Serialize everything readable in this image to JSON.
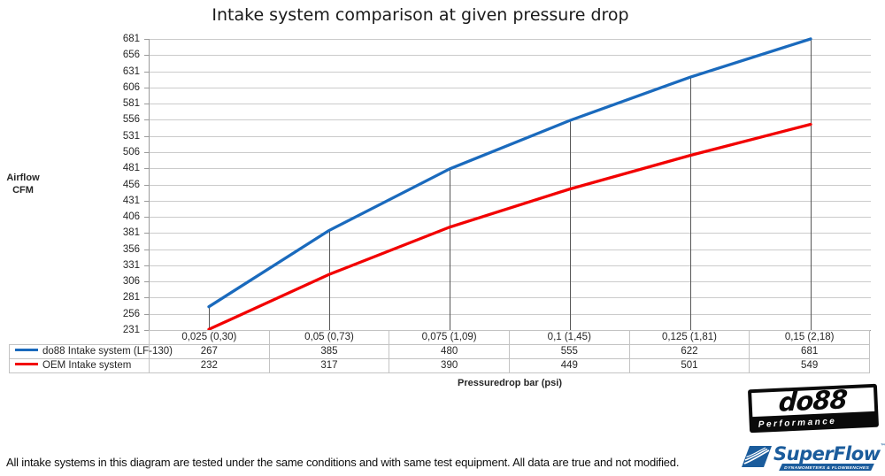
{
  "title": "Intake system comparison at given pressure drop",
  "y_axis": {
    "title_line1": "Airflow",
    "title_line2": "CFM"
  },
  "x_axis": {
    "title": "Pressuredrop bar (psi)"
  },
  "chart_data": {
    "type": "line",
    "title": "Intake system comparison at given pressure drop",
    "xlabel": "Pressuredrop bar (psi)",
    "ylabel": "Airflow CFM",
    "categories": [
      "0,025 (0,30)",
      "0,05 (0,73)",
      "0,075 (1,09)",
      "0,1 (1,45)",
      "0,125 (1,81)",
      "0,15 (2,18)"
    ],
    "series": [
      {
        "name": "do88 Intake system (LF-130)",
        "color": "#1a6abd",
        "values": [
          267,
          385,
          480,
          555,
          622,
          681
        ]
      },
      {
        "name": "OEM Intake system",
        "color": "#f20000",
        "values": [
          232,
          317,
          390,
          449,
          501,
          549
        ]
      }
    ],
    "ylim": [
      231,
      681
    ],
    "yticks": [
      231,
      256,
      281,
      306,
      331,
      356,
      381,
      406,
      431,
      456,
      481,
      506,
      531,
      556,
      581,
      606,
      631,
      656,
      681
    ],
    "grid": true,
    "drop_lines": true,
    "legend_position": "table-left"
  },
  "footer": {
    "disclaimer": "All intake systems in this diagram are tested under the same conditions and with same test equipment. All data are true and not modified."
  },
  "logos": {
    "do88": {
      "text": "do88",
      "subtext": "Performance",
      "color": "#0a0a0a"
    },
    "superflow": {
      "text": "SuperFlow",
      "tm": "™",
      "subtext": "DYNAMOMETERS & FLOWBENCHES",
      "color": "#1b5c9c"
    }
  },
  "colors": {
    "gridline": "#cbcbcb",
    "axis": "#9b9b9b",
    "drop_line": "#565656"
  }
}
